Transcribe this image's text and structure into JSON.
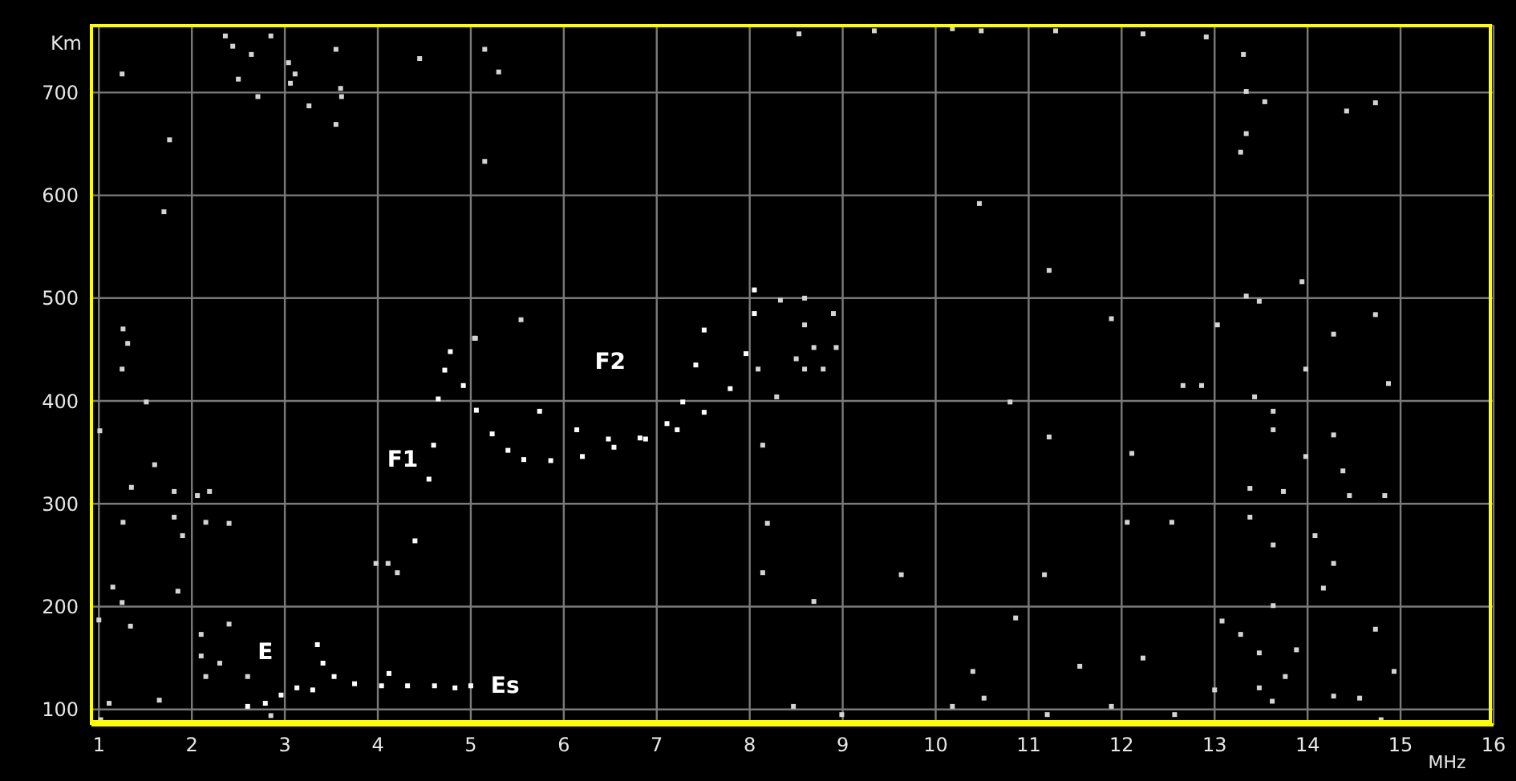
{
  "chart_data": {
    "type": "scatter",
    "xlabel": "MHz",
    "ylabel": "Km",
    "xlim": [
      0.92,
      16
    ],
    "ylim": [
      85,
      765
    ],
    "xticks": [
      1,
      2,
      3,
      4,
      5,
      6,
      7,
      8,
      9,
      10,
      11,
      12,
      13,
      14,
      15,
      16
    ],
    "yticks": [
      100,
      200,
      300,
      400,
      500,
      600,
      700
    ],
    "grid": true,
    "marker": "square",
    "series": [
      {
        "color": "#ffffff",
        "x": [
          4.78,
          4.92,
          5.06,
          5.23,
          5.4,
          5.57,
          5.86,
          6.2,
          6.54,
          6.88,
          7.22,
          7.51,
          7.79,
          7.96,
          8.05,
          8.05,
          5.74,
          6.14,
          6.48,
          6.82,
          7.11,
          7.28,
          7.42,
          7.51,
          4.72,
          4.65,
          4.6,
          4.55,
          4.4,
          2.6,
          2.79,
          2.96,
          3.13,
          3.3,
          3.35,
          3.41,
          3.53,
          3.75,
          4.04,
          4.12,
          4.32,
          4.61,
          4.83,
          5.0
        ],
        "values": [
          448,
          415,
          391,
          368,
          352,
          343,
          342,
          346,
          355,
          363,
          372,
          389,
          412,
          446,
          485,
          508,
          390,
          372,
          363,
          364,
          378,
          399,
          435,
          469,
          430,
          402,
          357,
          324,
          264,
          103,
          106,
          114,
          121,
          119,
          163,
          145,
          132,
          125,
          123,
          135,
          123,
          123,
          121,
          123
        ]
      },
      {
        "color": "#d4d4d4",
        "x": [
          1.25,
          1.76,
          1.7,
          1.26,
          1.31,
          1.25,
          1.51,
          1.6,
          1.35,
          1.81,
          2.06,
          2.19,
          1.26,
          1.81,
          2.15,
          2.4,
          1.9,
          1.01,
          1.15,
          1.25,
          1.85,
          1.0,
          1.34,
          2.1,
          2.1,
          2.3,
          2.4,
          2.15,
          2.6,
          1.11,
          1.65,
          1.02,
          2.85,
          2.36,
          2.44,
          2.5,
          2.64,
          2.71,
          2.85,
          3.04,
          3.11,
          3.06,
          3.26,
          3.55,
          3.6,
          3.61,
          3.55,
          4.45,
          5.15,
          5.3,
          5.15,
          5.04,
          3.98,
          4.11,
          4.21,
          13.31,
          13.34,
          13.54,
          14.42,
          14.73,
          13.34,
          13.28,
          13.94,
          13.34,
          13.48,
          13.03,
          14.28,
          14.73,
          13.98,
          14.87,
          13.43,
          13.63,
          13.63,
          14.28,
          13.98,
          14.38,
          13.38,
          13.74,
          14.45,
          14.83,
          13.38,
          14.08,
          13.63,
          14.28,
          14.17,
          13.63,
          14.73,
          13.08,
          13.28,
          13.48,
          13.88,
          14.93,
          13.48,
          13.76,
          14.28,
          14.56,
          13.62,
          14.79,
          8.33,
          8.59,
          8.9,
          8.59,
          8.69,
          8.93,
          8.5,
          8.59,
          8.79,
          8.09,
          8.29,
          8.14,
          8.19,
          8.14,
          8.69,
          5.54,
          5.05,
          10.47,
          11.22,
          10.8,
          11.22,
          11.17,
          9.63,
          10.86,
          10.4,
          12.23,
          12.06,
          12.11,
          12.86,
          11.55,
          12.54,
          12.66,
          11.89,
          8.53,
          9.34,
          10.18,
          10.49,
          11.29,
          12.23,
          12.91,
          8.47,
          8.99,
          10.18,
          10.52,
          11.2,
          11.89,
          12.57,
          13.0
        ],
        "values": [
          718,
          654,
          584,
          470,
          456,
          431,
          399,
          338,
          316,
          312,
          308,
          312,
          282,
          287,
          282,
          281,
          269,
          371,
          219,
          204,
          215,
          187,
          181,
          173,
          152,
          145,
          183,
          132,
          132,
          106,
          109,
          90,
          94,
          755,
          745,
          713,
          737,
          696,
          755,
          729,
          718,
          709,
          687,
          742,
          704,
          696,
          669,
          733,
          742,
          720,
          633,
          461,
          242,
          242,
          233,
          737,
          701,
          691,
          682,
          690,
          660,
          642,
          516,
          502,
          497,
          474,
          465,
          484,
          431,
          417,
          404,
          390,
          372,
          367,
          346,
          332,
          315,
          312,
          308,
          308,
          287,
          269,
          260,
          242,
          218,
          201,
          178,
          186,
          173,
          155,
          158,
          137,
          121,
          132,
          113,
          111,
          108,
          90,
          498,
          500,
          485,
          474,
          452,
          452,
          441,
          431,
          431,
          431,
          404,
          357,
          281,
          233,
          205,
          479,
          461,
          592,
          527,
          399,
          365,
          231,
          231,
          189,
          137,
          150,
          282,
          349,
          415,
          142,
          282,
          415,
          480,
          757,
          760,
          762,
          760,
          760,
          757,
          754,
          103,
          95,
          103,
          111,
          95,
          103,
          95,
          119
        ]
      }
    ],
    "annotations": [
      "E",
      "Es",
      "F1",
      "F2"
    ]
  }
}
